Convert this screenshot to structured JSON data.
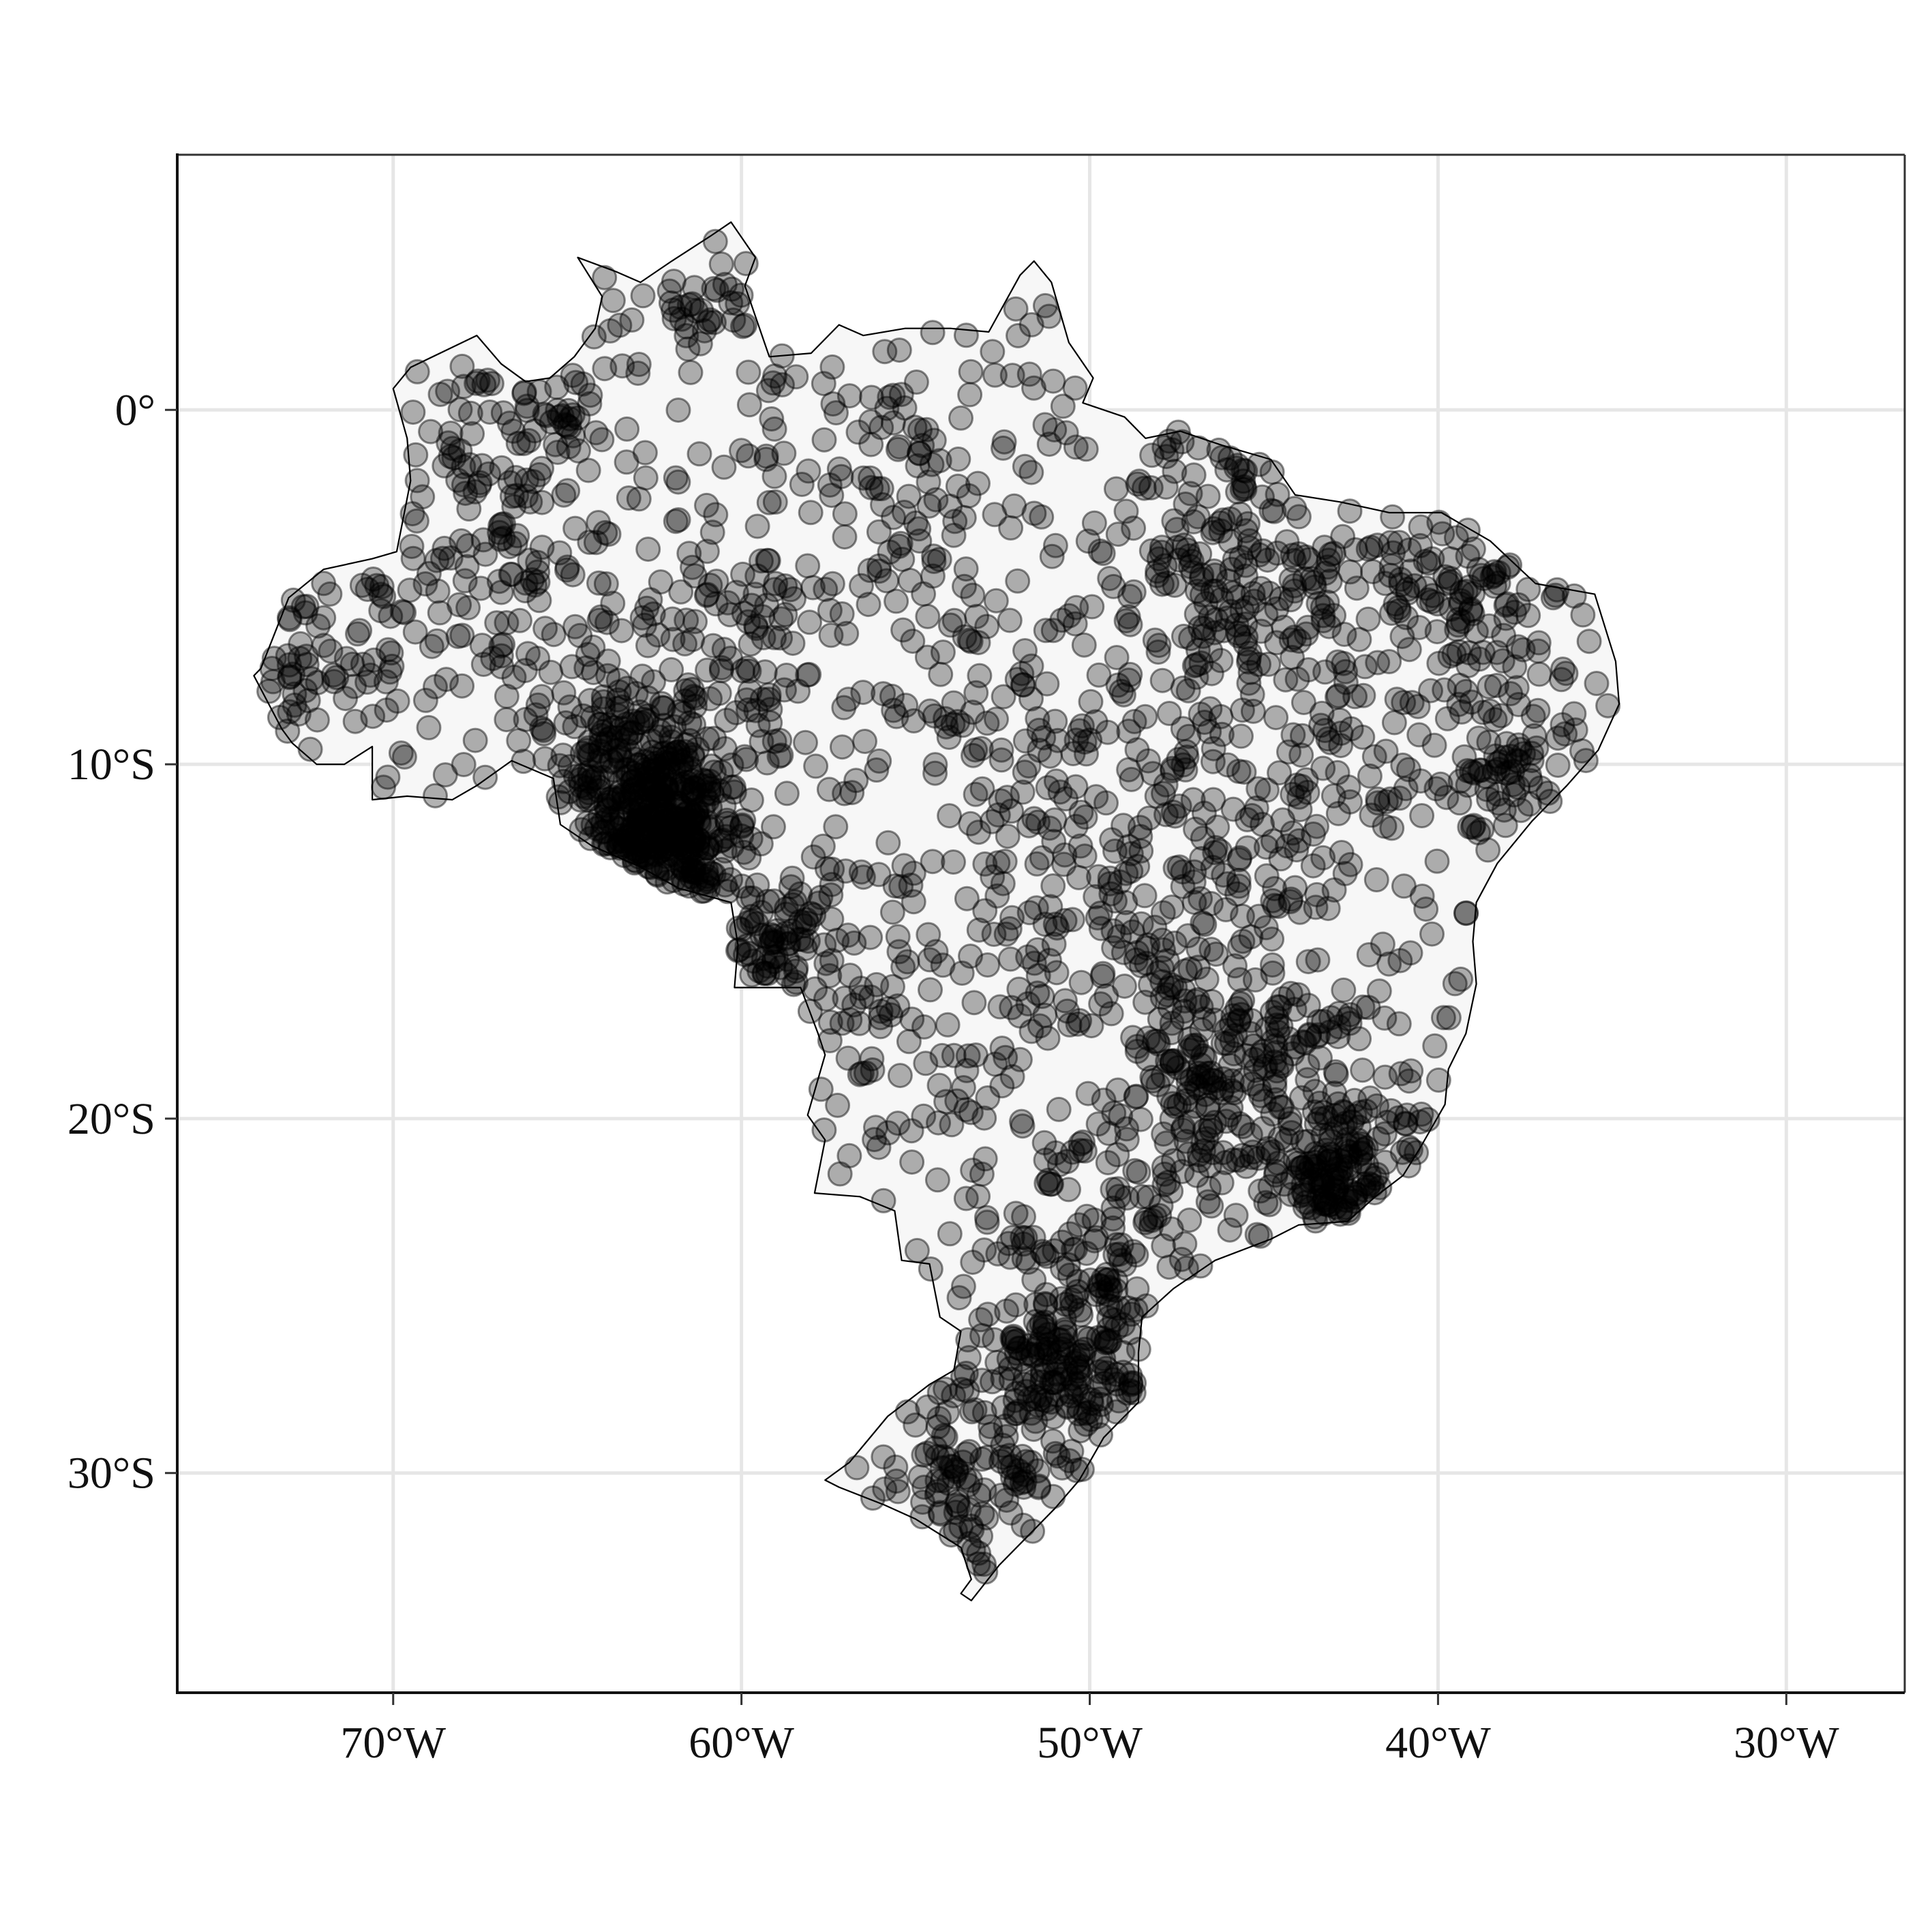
{
  "map": {
    "type": "point-map",
    "region": "Brazil",
    "x_axis": {
      "range_lon": [
        -76.2,
        -26.6
      ],
      "ticks": [
        {
          "value": -70,
          "label": "70°W"
        },
        {
          "value": -60,
          "label": "60°W"
        },
        {
          "value": -50,
          "label": "50°W"
        },
        {
          "value": -40,
          "label": "40°W"
        },
        {
          "value": -30,
          "label": "30°W"
        }
      ]
    },
    "y_axis": {
      "range_lat": [
        -36.2,
        7.2
      ],
      "ticks": [
        {
          "value": 0,
          "label": "0°"
        },
        {
          "value": -10,
          "label": "10°S"
        },
        {
          "value": -20,
          "label": "20°S"
        },
        {
          "value": -30,
          "label": "30°S"
        }
      ]
    },
    "colors": {
      "panel_background": "#ffffff",
      "grid": "#e6e6e6",
      "land_fill": "#f7f7f7",
      "border": "#000000",
      "points": "#000000"
    },
    "point_style": {
      "opacity": 0.3,
      "marker": "circle"
    },
    "outline_lonlat": [
      [
        -73.8,
        -7.3
      ],
      [
        -73.0,
        -5.3
      ],
      [
        -72.0,
        -4.5
      ],
      [
        -70.6,
        -4.2
      ],
      [
        -69.9,
        -4.0
      ],
      [
        -69.5,
        -2.0
      ],
      [
        -69.6,
        -0.8
      ],
      [
        -70.0,
        0.6
      ],
      [
        -69.5,
        1.2
      ],
      [
        -67.6,
        2.1
      ],
      [
        -66.9,
        1.3
      ],
      [
        -66.2,
        0.8
      ],
      [
        -65.5,
        0.9
      ],
      [
        -64.8,
        1.5
      ],
      [
        -64.2,
        2.3
      ],
      [
        -64.0,
        3.2
      ],
      [
        -64.7,
        4.3
      ],
      [
        -63.6,
        3.9
      ],
      [
        -62.9,
        3.6
      ],
      [
        -62.0,
        4.2
      ],
      [
        -60.9,
        4.9
      ],
      [
        -60.3,
        5.3
      ],
      [
        -59.6,
        4.3
      ],
      [
        -59.9,
        3.5
      ],
      [
        -59.2,
        1.5
      ],
      [
        -58.0,
        1.6
      ],
      [
        -57.2,
        2.4
      ],
      [
        -56.5,
        2.1
      ],
      [
        -55.3,
        2.3
      ],
      [
        -54.0,
        2.3
      ],
      [
        -52.9,
        2.2
      ],
      [
        -52.0,
        3.8
      ],
      [
        -51.6,
        4.2
      ],
      [
        -51.1,
        3.6
      ],
      [
        -50.6,
        1.9
      ],
      [
        -49.9,
        0.9
      ],
      [
        -50.2,
        0.2
      ],
      [
        -49.0,
        -0.2
      ],
      [
        -48.4,
        -0.8
      ],
      [
        -47.4,
        -0.6
      ],
      [
        -46.2,
        -1.0
      ],
      [
        -44.8,
        -1.4
      ],
      [
        -44.1,
        -2.4
      ],
      [
        -42.8,
        -2.6
      ],
      [
        -41.4,
        -2.9
      ],
      [
        -39.9,
        -2.9
      ],
      [
        -38.5,
        -3.7
      ],
      [
        -37.2,
        -4.9
      ],
      [
        -35.5,
        -5.2
      ],
      [
        -34.9,
        -7.1
      ],
      [
        -34.8,
        -8.3
      ],
      [
        -35.4,
        -9.6
      ],
      [
        -36.3,
        -10.6
      ],
      [
        -37.3,
        -11.6
      ],
      [
        -38.3,
        -12.8
      ],
      [
        -38.9,
        -13.9
      ],
      [
        -39.0,
        -15.0
      ],
      [
        -38.9,
        -16.2
      ],
      [
        -39.2,
        -17.6
      ],
      [
        -39.7,
        -18.6
      ],
      [
        -39.8,
        -19.6
      ],
      [
        -40.5,
        -20.8
      ],
      [
        -41.0,
        -21.6
      ],
      [
        -41.8,
        -22.2
      ],
      [
        -42.6,
        -22.9
      ],
      [
        -44.0,
        -23.0
      ],
      [
        -44.8,
        -23.4
      ],
      [
        -46.4,
        -24.0
      ],
      [
        -47.6,
        -24.8
      ],
      [
        -48.5,
        -25.6
      ],
      [
        -48.6,
        -26.6
      ],
      [
        -48.6,
        -28.0
      ],
      [
        -49.6,
        -29.0
      ],
      [
        -50.3,
        -30.2
      ],
      [
        -51.0,
        -31.0
      ],
      [
        -51.8,
        -31.8
      ],
      [
        -52.6,
        -32.6
      ],
      [
        -53.4,
        -33.6
      ],
      [
        -53.7,
        -33.4
      ],
      [
        -53.4,
        -33.0
      ],
      [
        -53.7,
        -32.1
      ],
      [
        -55.0,
        -31.3
      ],
      [
        -55.9,
        -30.9
      ],
      [
        -57.2,
        -30.4
      ],
      [
        -57.6,
        -30.2
      ],
      [
        -56.9,
        -29.7
      ],
      [
        -55.8,
        -28.4
      ],
      [
        -54.6,
        -27.5
      ],
      [
        -53.9,
        -27.1
      ],
      [
        -53.7,
        -26.0
      ],
      [
        -54.3,
        -25.6
      ],
      [
        -54.6,
        -24.1
      ],
      [
        -55.4,
        -24.0
      ],
      [
        -55.6,
        -22.6
      ],
      [
        -56.6,
        -22.2
      ],
      [
        -57.9,
        -22.1
      ],
      [
        -57.6,
        -20.6
      ],
      [
        -58.1,
        -19.9
      ],
      [
        -57.6,
        -18.2
      ],
      [
        -57.8,
        -17.6
      ],
      [
        -58.3,
        -16.3
      ],
      [
        -60.2,
        -16.3
      ],
      [
        -60.1,
        -15.1
      ],
      [
        -60.3,
        -13.9
      ],
      [
        -61.8,
        -13.5
      ],
      [
        -62.9,
        -12.9
      ],
      [
        -64.3,
        -12.3
      ],
      [
        -65.2,
        -11.7
      ],
      [
        -65.4,
        -10.4
      ],
      [
        -66.6,
        -9.9
      ],
      [
        -67.6,
        -10.6
      ],
      [
        -68.3,
        -11.0
      ],
      [
        -69.6,
        -10.9
      ],
      [
        -70.6,
        -11.0
      ],
      [
        -70.6,
        -9.5
      ],
      [
        -71.4,
        -10.0
      ],
      [
        -72.2,
        -10.0
      ],
      [
        -72.9,
        -9.4
      ],
      [
        -73.2,
        -9.0
      ],
      [
        -74.0,
        -7.5
      ],
      [
        -73.8,
        -7.3
      ]
    ],
    "clusters_lonlat_n_spread": [
      [
        -63.0,
        -10.5,
        260,
        1.3
      ],
      [
        -62.0,
        -12.3,
        170,
        1.0
      ],
      [
        -59.5,
        -15.0,
        70,
        1.1
      ],
      [
        -46.0,
        -19.2,
        150,
        1.8
      ],
      [
        -42.8,
        -21.6,
        140,
        1.3
      ],
      [
        -47.8,
        -15.5,
        120,
        2.5
      ],
      [
        -50.0,
        -26.8,
        160,
        1.4
      ],
      [
        -52.5,
        -28.5,
        80,
        2.0
      ],
      [
        -42.0,
        -7.0,
        170,
        3.5
      ],
      [
        -46.0,
        -5.0,
        60,
        1.0
      ],
      [
        -37.5,
        -10.5,
        40,
        1.3
      ],
      [
        -45.0,
        -12.0,
        90,
        3.5
      ],
      [
        -52.5,
        -8.5,
        80,
        4.0
      ],
      [
        -66.5,
        -6.0,
        110,
        3.5
      ],
      [
        -67.0,
        -1.5,
        80,
        2.5
      ],
      [
        -61.0,
        3.0,
        30,
        0.8
      ],
      [
        -55.0,
        -2.5,
        30,
        1.2
      ],
      [
        -55.0,
        -18.0,
        60,
        2.5
      ],
      [
        -60.0,
        -6.5,
        50,
        1.5
      ],
      [
        -72.5,
        -7.5,
        30,
        1.2
      ],
      [
        -49.5,
        -22.8,
        70,
        1.5
      ],
      [
        -46.0,
        -2.5,
        30,
        1.5
      ],
      [
        -54.0,
        -31.0,
        40,
        1.2
      ],
      [
        -57.0,
        -0.5,
        30,
        2.0
      ],
      [
        -48.5,
        -9.5,
        40,
        3.0
      ],
      [
        -38.8,
        -5.5,
        40,
        1.2
      ]
    ]
  }
}
